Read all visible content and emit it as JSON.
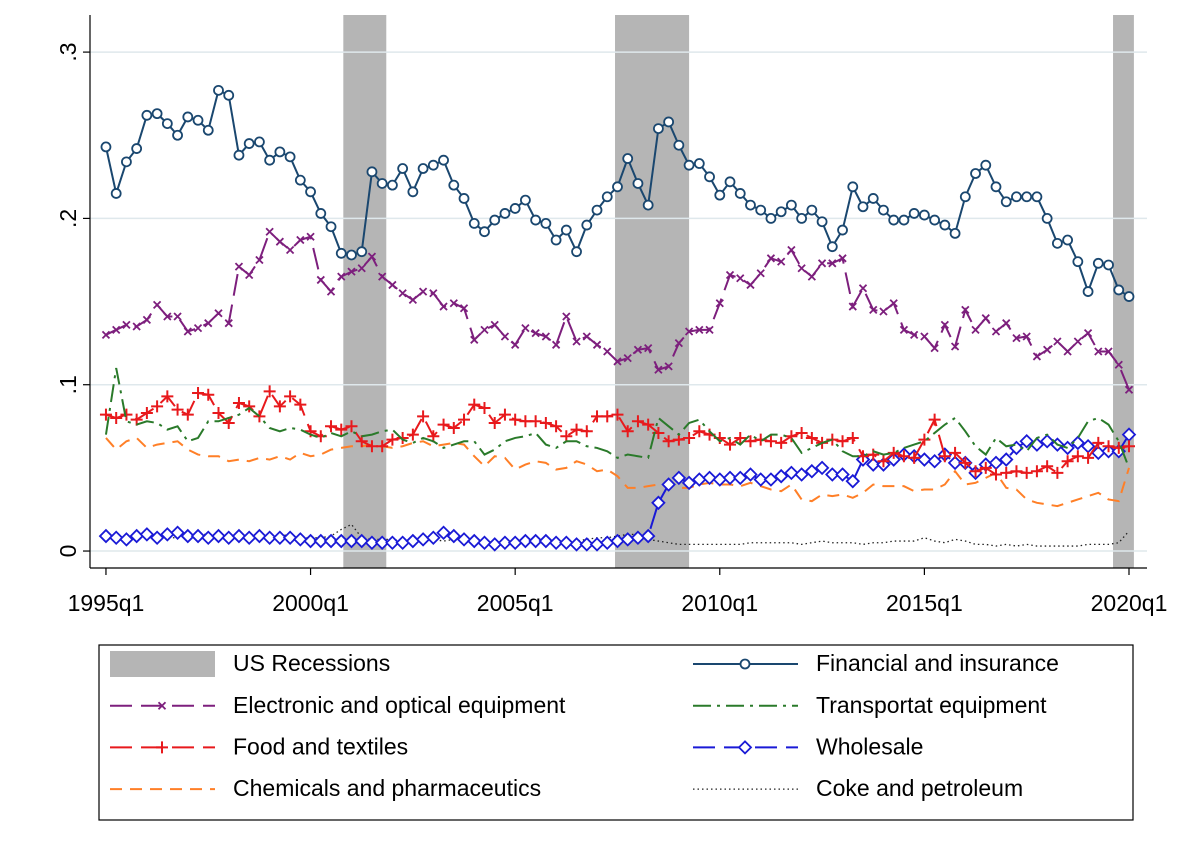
{
  "chart_data": {
    "type": "line",
    "x": [
      1995,
      1995.25,
      1995.5,
      1995.75,
      1996,
      1996.25,
      1996.5,
      1996.75,
      1997,
      1997.25,
      1997.5,
      1997.75,
      1998,
      1998.25,
      1998.5,
      1998.75,
      1999,
      1999.25,
      1999.5,
      1999.75,
      2000,
      2000.25,
      2000.5,
      2000.75,
      2001,
      2001.25,
      2001.5,
      2001.75,
      2002,
      2002.25,
      2002.5,
      2002.75,
      2003,
      2003.25,
      2003.5,
      2003.75,
      2004,
      2004.25,
      2004.5,
      2004.75,
      2005,
      2005.25,
      2005.5,
      2005.75,
      2006,
      2006.25,
      2006.5,
      2006.75,
      2007,
      2007.25,
      2007.5,
      2007.75,
      2008,
      2008.25,
      2008.5,
      2008.75,
      2009,
      2009.25,
      2009.5,
      2009.75,
      2010,
      2010.25,
      2010.5,
      2010.75,
      2011,
      2011.25,
      2011.5,
      2011.75,
      2012,
      2012.25,
      2012.5,
      2012.75,
      2013,
      2013.25,
      2013.5,
      2013.75,
      2014,
      2014.25,
      2014.5,
      2014.75,
      2015,
      2015.25,
      2015.5,
      2015.75,
      2016,
      2016.25,
      2016.5,
      2016.75,
      2017,
      2017.25,
      2017.5,
      2017.75,
      2018,
      2018.25,
      2018.5,
      2018.75,
      2019,
      2019.25,
      2019.5,
      2019.75,
      2020
    ],
    "xlim": [
      1994.61,
      2020.44
    ],
    "xticks": [
      {
        "value": 1995,
        "label": "1995q1"
      },
      {
        "value": 2000,
        "label": "2000q1"
      },
      {
        "value": 2005,
        "label": "2005q1"
      },
      {
        "value": 2010,
        "label": "2010q1"
      },
      {
        "value": 2015,
        "label": "2015q1"
      },
      {
        "value": 2020,
        "label": "2020q1"
      }
    ],
    "ylim": [
      -0.0102,
      0.3223
    ],
    "yticks": [
      0,
      {
        "value": 0.1,
        "label": ".1"
      },
      {
        "value": 0.2,
        "label": ".2"
      },
      {
        "value": 0.3,
        "label": ".3"
      }
    ],
    "grid": true,
    "recessions": {
      "name": "US Recessions",
      "color": "#b5b5b5",
      "periods": [
        [
          2000.8,
          2001.85
        ],
        [
          2007.44,
          2009.25
        ],
        [
          2019.61,
          2020.12
        ]
      ]
    },
    "series": [
      {
        "name": "Financial and insurance",
        "color": "#1a476f",
        "dash": "solid",
        "marker": "circle",
        "values": [
          0.243,
          0.215,
          0.234,
          0.242,
          0.262,
          0.263,
          0.257,
          0.25,
          0.261,
          0.259,
          0.253,
          0.277,
          0.274,
          0.238,
          0.245,
          0.246,
          0.235,
          0.24,
          0.237,
          0.223,
          0.216,
          0.203,
          0.195,
          0.179,
          0.178,
          0.18,
          0.228,
          0.221,
          0.22,
          0.23,
          0.216,
          0.23,
          0.232,
          0.235,
          0.22,
          0.212,
          0.197,
          0.192,
          0.199,
          0.203,
          0.206,
          0.211,
          0.199,
          0.197,
          0.187,
          0.193,
          0.18,
          0.196,
          0.205,
          0.213,
          0.219,
          0.236,
          0.221,
          0.208,
          0.254,
          0.258,
          0.244,
          0.232,
          0.233,
          0.225,
          0.214,
          0.222,
          0.215,
          0.208,
          0.205,
          0.2,
          0.204,
          0.208,
          0.2,
          0.205,
          0.198,
          0.183,
          0.193,
          0.219,
          0.207,
          0.212,
          0.205,
          0.199,
          0.199,
          0.203,
          0.202,
          0.199,
          0.196,
          0.191,
          0.213,
          0.227,
          0.232,
          0.219,
          0.21,
          0.213,
          0.213,
          0.213,
          0.2,
          0.185,
          0.187,
          0.174,
          0.156,
          0.173,
          0.172,
          0.157,
          0.153
        ]
      },
      {
        "name": "Electronic and optical equipment",
        "color": "#7d1f7d",
        "dash": "longdash",
        "marker": "x",
        "values": [
          0.13,
          0.133,
          0.136,
          0.135,
          0.139,
          0.148,
          0.141,
          0.141,
          0.132,
          0.134,
          0.137,
          0.143,
          0.137,
          0.171,
          0.166,
          0.175,
          0.192,
          0.186,
          0.181,
          0.187,
          0.189,
          0.163,
          0.156,
          0.165,
          0.168,
          0.17,
          0.177,
          0.165,
          0.16,
          0.155,
          0.151,
          0.156,
          0.155,
          0.147,
          0.149,
          0.146,
          0.127,
          0.133,
          0.136,
          0.129,
          0.124,
          0.134,
          0.131,
          0.129,
          0.124,
          0.141,
          0.126,
          0.129,
          0.124,
          0.12,
          0.114,
          0.116,
          0.121,
          0.122,
          0.109,
          0.111,
          0.125,
          0.132,
          0.133,
          0.133,
          0.149,
          0.166,
          0.164,
          0.16,
          0.167,
          0.176,
          0.174,
          0.181,
          0.17,
          0.165,
          0.173,
          0.173,
          0.176,
          0.147,
          0.158,
          0.145,
          0.144,
          0.149,
          0.133,
          0.13,
          0.129,
          0.122,
          0.136,
          0.123,
          0.145,
          0.133,
          0.14,
          0.132,
          0.137,
          0.128,
          0.129,
          0.117,
          0.121,
          0.126,
          0.12,
          0.126,
          0.131,
          0.12,
          0.12,
          0.112,
          0.097
        ]
      },
      {
        "name": "Transportat equipment",
        "color": "#2a7a2a",
        "dash": "dashdot",
        "marker": "none",
        "values": [
          0.07,
          0.11,
          0.078,
          0.076,
          0.078,
          0.077,
          0.073,
          0.075,
          0.066,
          0.068,
          0.078,
          0.078,
          0.08,
          0.082,
          0.086,
          0.081,
          0.074,
          0.072,
          0.074,
          0.073,
          0.07,
          0.068,
          0.071,
          0.069,
          0.072,
          0.069,
          0.07,
          0.072,
          0.073,
          0.067,
          0.065,
          0.068,
          0.066,
          0.062,
          0.064,
          0.066,
          0.066,
          0.058,
          0.061,
          0.066,
          0.068,
          0.069,
          0.071,
          0.064,
          0.062,
          0.066,
          0.066,
          0.063,
          0.062,
          0.06,
          0.056,
          0.058,
          0.057,
          0.056,
          0.08,
          0.075,
          0.07,
          0.077,
          0.079,
          0.072,
          0.066,
          0.068,
          0.064,
          0.07,
          0.066,
          0.07,
          0.07,
          0.068,
          0.059,
          0.062,
          0.065,
          0.067,
          0.06,
          0.057,
          0.057,
          0.06,
          0.058,
          0.059,
          0.062,
          0.064,
          0.066,
          0.071,
          0.076,
          0.08,
          0.072,
          0.063,
          0.058,
          0.068,
          0.063,
          0.064,
          0.06,
          0.068,
          0.07,
          0.064,
          0.062,
          0.068,
          0.078,
          0.08,
          0.076,
          0.066,
          0.05
        ]
      },
      {
        "name": "Food and textiles",
        "color": "#e8191c",
        "dash": "longdash",
        "marker": "plus",
        "values": [
          0.082,
          0.08,
          0.082,
          0.079,
          0.083,
          0.087,
          0.093,
          0.085,
          0.082,
          0.095,
          0.094,
          0.083,
          0.077,
          0.089,
          0.087,
          0.081,
          0.096,
          0.087,
          0.093,
          0.088,
          0.072,
          0.069,
          0.075,
          0.073,
          0.075,
          0.066,
          0.063,
          0.063,
          0.067,
          0.068,
          0.07,
          0.081,
          0.069,
          0.076,
          0.074,
          0.079,
          0.088,
          0.086,
          0.077,
          0.082,
          0.079,
          0.078,
          0.078,
          0.077,
          0.075,
          0.069,
          0.073,
          0.072,
          0.081,
          0.081,
          0.082,
          0.072,
          0.078,
          0.076,
          0.071,
          0.066,
          0.067,
          0.068,
          0.072,
          0.07,
          0.068,
          0.064,
          0.068,
          0.066,
          0.067,
          0.066,
          0.065,
          0.069,
          0.071,
          0.068,
          0.065,
          0.067,
          0.066,
          0.068,
          0.057,
          0.058,
          0.054,
          0.059,
          0.057,
          0.056,
          0.067,
          0.079,
          0.057,
          0.059,
          0.053,
          0.048,
          0.05,
          0.046,
          0.047,
          0.048,
          0.047,
          0.048,
          0.051,
          0.047,
          0.054,
          0.057,
          0.056,
          0.065,
          0.063,
          0.062,
          0.063
        ]
      },
      {
        "name": "Wholesale",
        "color": "#1a1ad6",
        "dash": "longdash",
        "marker": "diamond",
        "values": [
          0.009,
          0.008,
          0.007,
          0.009,
          0.01,
          0.008,
          0.01,
          0.011,
          0.009,
          0.009,
          0.008,
          0.009,
          0.008,
          0.009,
          0.008,
          0.009,
          0.008,
          0.008,
          0.008,
          0.007,
          0.006,
          0.006,
          0.006,
          0.006,
          0.006,
          0.006,
          0.005,
          0.005,
          0.005,
          0.005,
          0.006,
          0.007,
          0.008,
          0.011,
          0.009,
          0.007,
          0.006,
          0.005,
          0.004,
          0.005,
          0.005,
          0.006,
          0.006,
          0.006,
          0.005,
          0.005,
          0.004,
          0.004,
          0.004,
          0.005,
          0.006,
          0.007,
          0.008,
          0.009,
          0.029,
          0.04,
          0.044,
          0.041,
          0.043,
          0.044,
          0.043,
          0.044,
          0.044,
          0.046,
          0.043,
          0.043,
          0.045,
          0.047,
          0.046,
          0.048,
          0.05,
          0.046,
          0.046,
          0.042,
          0.055,
          0.052,
          0.052,
          0.055,
          0.058,
          0.057,
          0.055,
          0.054,
          0.058,
          0.053,
          0.053,
          0.047,
          0.052,
          0.053,
          0.055,
          0.062,
          0.066,
          0.064,
          0.066,
          0.064,
          0.062,
          0.065,
          0.063,
          0.059,
          0.06,
          0.06,
          0.07
        ]
      },
      {
        "name": "Chemicals and pharmaceutics",
        "color": "#ff7f27",
        "dash": "dash",
        "marker": "none",
        "values": [
          0.068,
          0.061,
          0.066,
          0.068,
          0.062,
          0.064,
          0.065,
          0.066,
          0.061,
          0.058,
          0.057,
          0.057,
          0.054,
          0.055,
          0.054,
          0.056,
          0.055,
          0.057,
          0.055,
          0.059,
          0.057,
          0.058,
          0.061,
          0.062,
          0.063,
          0.063,
          0.064,
          0.063,
          0.062,
          0.063,
          0.065,
          0.066,
          0.063,
          0.064,
          0.065,
          0.064,
          0.057,
          0.051,
          0.057,
          0.056,
          0.049,
          0.052,
          0.054,
          0.053,
          0.049,
          0.05,
          0.054,
          0.052,
          0.048,
          0.049,
          0.045,
          0.038,
          0.038,
          0.039,
          0.04,
          0.041,
          0.038,
          0.038,
          0.04,
          0.041,
          0.04,
          0.04,
          0.039,
          0.041,
          0.039,
          0.037,
          0.036,
          0.04,
          0.031,
          0.03,
          0.034,
          0.033,
          0.034,
          0.032,
          0.035,
          0.04,
          0.039,
          0.039,
          0.039,
          0.036,
          0.037,
          0.037,
          0.04,
          0.048,
          0.04,
          0.041,
          0.044,
          0.047,
          0.038,
          0.037,
          0.031,
          0.029,
          0.028,
          0.027,
          0.029,
          0.031,
          0.033,
          0.035,
          0.031,
          0.03,
          0.05
        ]
      },
      {
        "name": "Coke and petroleum",
        "color": "#222222",
        "dash": "dot",
        "marker": "none",
        "values": [
          0.008,
          0.009,
          0.009,
          0.008,
          0.009,
          0.009,
          0.008,
          0.008,
          0.009,
          0.01,
          0.01,
          0.009,
          0.009,
          0.008,
          0.009,
          0.008,
          0.009,
          0.009,
          0.01,
          0.008,
          0.008,
          0.008,
          0.009,
          0.013,
          0.016,
          0.008,
          0.007,
          0.007,
          0.007,
          0.006,
          0.007,
          0.006,
          0.007,
          0.006,
          0.007,
          0.007,
          0.006,
          0.006,
          0.005,
          0.006,
          0.006,
          0.006,
          0.005,
          0.005,
          0.005,
          0.005,
          0.006,
          0.007,
          0.008,
          0.008,
          0.009,
          0.01,
          0.01,
          0.007,
          0.006,
          0.005,
          0.004,
          0.004,
          0.004,
          0.004,
          0.004,
          0.004,
          0.004,
          0.005,
          0.005,
          0.005,
          0.005,
          0.005,
          0.004,
          0.005,
          0.006,
          0.005,
          0.005,
          0.005,
          0.004,
          0.005,
          0.005,
          0.006,
          0.006,
          0.006,
          0.008,
          0.006,
          0.005,
          0.007,
          0.006,
          0.004,
          0.004,
          0.003,
          0.004,
          0.003,
          0.004,
          0.003,
          0.003,
          0.003,
          0.003,
          0.003,
          0.004,
          0.004,
          0.004,
          0.005,
          0.012
        ]
      }
    ]
  }
}
